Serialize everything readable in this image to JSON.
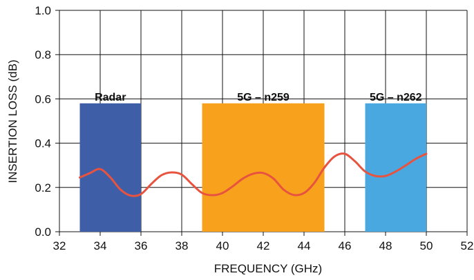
{
  "chart_data": {
    "type": "line",
    "title": "",
    "xlabel": "FREQUENCY (GHz)",
    "ylabel": "INSERTION LOSS (dB)",
    "xlim": [
      32,
      52
    ],
    "ylim": [
      0.0,
      1.0
    ],
    "x_ticks": [
      "32",
      "34",
      "36",
      "38",
      "40",
      "42",
      "44",
      "46",
      "48",
      "50",
      "52"
    ],
    "y_ticks": [
      "0.0",
      "0.2",
      "0.4",
      "0.6",
      "0.8",
      "1.0"
    ],
    "grid": true,
    "bands": [
      {
        "label": "Radar",
        "x_start": 33,
        "x_end": 36,
        "y_top": 0.58,
        "color": "#3f5ea8"
      },
      {
        "label": "5G – n259",
        "x_start": 39,
        "x_end": 45,
        "y_top": 0.58,
        "color": "#f7a11d"
      },
      {
        "label": "5G – n262",
        "x_start": 47,
        "x_end": 50,
        "y_top": 0.58,
        "color": "#4aa8e0"
      }
    ],
    "series": [
      {
        "color": "#e8533f",
        "x": [
          33.0,
          33.5,
          34.0,
          34.5,
          35.0,
          35.5,
          36.0,
          36.5,
          37.0,
          37.5,
          38.0,
          38.5,
          39.0,
          39.5,
          40.0,
          40.5,
          41.0,
          41.5,
          42.0,
          42.5,
          43.0,
          43.5,
          44.0,
          44.5,
          45.0,
          45.5,
          46.0,
          46.5,
          47.0,
          47.5,
          48.0,
          48.5,
          49.0,
          49.5,
          50.0
        ],
        "y": [
          0.245,
          0.265,
          0.283,
          0.245,
          0.19,
          0.163,
          0.17,
          0.215,
          0.255,
          0.268,
          0.258,
          0.215,
          0.175,
          0.165,
          0.175,
          0.205,
          0.24,
          0.262,
          0.265,
          0.24,
          0.19,
          0.166,
          0.175,
          0.22,
          0.29,
          0.34,
          0.352,
          0.318,
          0.272,
          0.252,
          0.252,
          0.272,
          0.3,
          0.33,
          0.352
        ]
      }
    ]
  }
}
